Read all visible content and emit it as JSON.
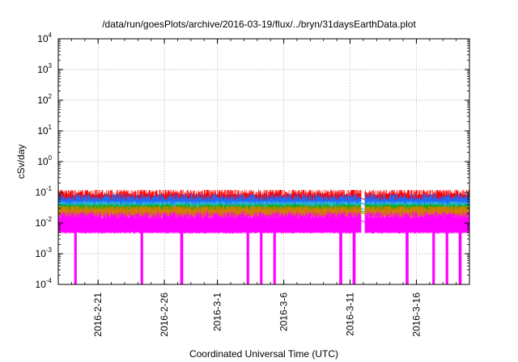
{
  "chart_data": {
    "type": "line",
    "title": "/data/run/goesPlots/archive/2016-03-19/flux/../bryn/31daysEarthData.plot",
    "xlabel": "Coordinated Universal Time (UTC)",
    "ylabel": "cSv/day",
    "x_range": [
      "2016-02-18",
      "2016-03-20"
    ],
    "x_ticks": [
      "2016-2-21",
      "2016-2-26",
      "2016-3-1",
      "2016-3-6",
      "2016-3-11",
      "2016-3-16"
    ],
    "y_scale": "log",
    "ylim": [
      0.0001,
      10000
    ],
    "y_ticks": [
      {
        "base": "10",
        "exp": "-4"
      },
      {
        "base": "10",
        "exp": "-3"
      },
      {
        "base": "10",
        "exp": "-2"
      },
      {
        "base": "10",
        "exp": "-1"
      },
      {
        "base": "10",
        "exp": "0"
      },
      {
        "base": "10",
        "exp": "1"
      },
      {
        "base": "10",
        "exp": "2"
      },
      {
        "base": "10",
        "exp": "3"
      },
      {
        "base": "10",
        "exp": "4"
      }
    ],
    "grid": true,
    "data_gap": [
      "2016-03-11",
      "2016-03-12"
    ],
    "series": [
      {
        "color": "#ff0000",
        "typical": 0.065,
        "min": 0.045,
        "max": 0.12
      },
      {
        "color": "#1e6bff",
        "typical": 0.045,
        "min": 0.03,
        "max": 0.09
      },
      {
        "color": "#2fb8c8",
        "typical": 0.03,
        "min": 0.02,
        "max": 0.05
      },
      {
        "color": "#00b000",
        "typical": 0.025,
        "min": 0.017,
        "max": 0.04
      },
      {
        "color": "#d08000",
        "typical": 0.022,
        "min": 0.015,
        "max": 0.035
      },
      {
        "color": "#ff00ff",
        "typical": 0.012,
        "min": 0.0045,
        "max": 0.025,
        "dropouts": [
          "2016-02-19",
          "2016-02-24",
          "2016-02-27",
          "2016-03-03",
          "2016-03-04",
          "2016-03-05",
          "2016-03-10",
          "2016-03-11",
          "2016-03-15",
          "2016-03-17",
          "2016-03-18",
          "2016-03-19"
        ]
      }
    ]
  }
}
